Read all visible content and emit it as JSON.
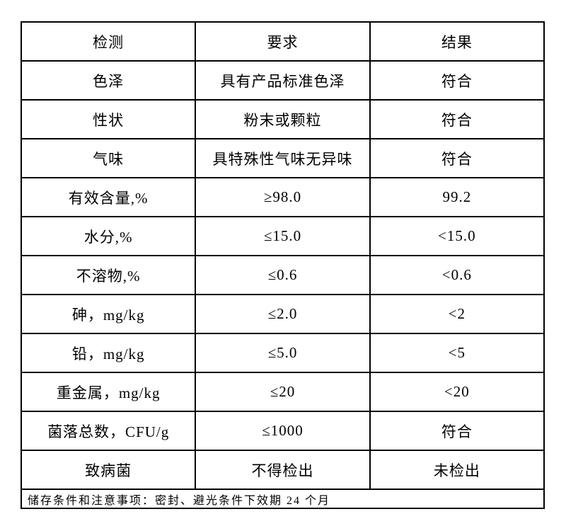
{
  "page": {
    "background_color": "#ffffff",
    "border_color": "#000000",
    "text_color": "#000000"
  },
  "table": {
    "header": {
      "test": "检测",
      "requirement": "要求",
      "result": "结果"
    },
    "rows": [
      [
        "色泽",
        "具有产品标准色泽",
        "符合"
      ],
      [
        "性状",
        "粉末或颗粒",
        "符合"
      ],
      [
        "气味",
        "具特殊性气味无异味",
        "符合"
      ],
      [
        "有效含量,%",
        "≥98.0",
        "99.2"
      ],
      [
        "水分,%",
        "≤15.0",
        "<15.0"
      ],
      [
        "不溶物,%",
        "≤0.6",
        "<0.6"
      ],
      [
        "砷，mg/kg",
        "≤2.0",
        "<2"
      ],
      [
        "铅，mg/kg",
        "≤5.0",
        "<5"
      ],
      [
        "重金属，mg/kg",
        "≤20",
        "<20"
      ],
      [
        "菌落总数，CFU/g",
        "≤1000",
        "符合"
      ],
      [
        "致病菌",
        "不得检出",
        "未检出"
      ]
    ],
    "footer": "储存条件和注意事项：密封、避光条件下效期 24 个月"
  }
}
